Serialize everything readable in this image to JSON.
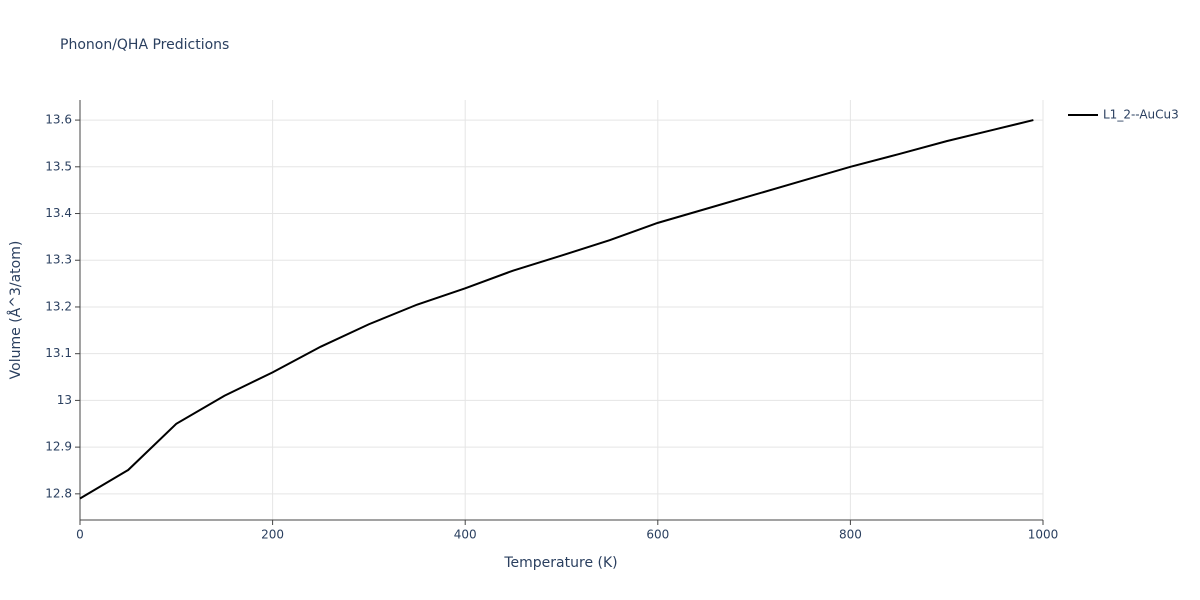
{
  "chart_data": {
    "type": "line",
    "title": "Phonon/QHA Predictions",
    "x_label": "Temperature (K)",
    "y_label": "Volume (Å^3/atom)",
    "x": [
      0,
      50,
      100,
      150,
      200,
      250,
      300,
      350,
      400,
      450,
      500,
      550,
      600,
      650,
      700,
      750,
      800,
      850,
      900,
      950,
      990
    ],
    "series": [
      {
        "name": "L1_2--AuCu3",
        "color": "#000000",
        "values": [
          12.79,
          12.851,
          12.95,
          13.01,
          13.06,
          13.115,
          13.163,
          13.205,
          13.24,
          13.278,
          13.31,
          13.343,
          13.38,
          13.41,
          13.44,
          13.47,
          13.5,
          13.527,
          13.555,
          13.58,
          13.6
        ]
      }
    ],
    "xlim": [
      0,
      1000
    ],
    "xticks": [
      0,
      200,
      400,
      600,
      800,
      1000
    ],
    "ylim": [
      12.744,
      13.643
    ],
    "yticks": [
      12.8,
      12.9,
      13,
      13.1,
      13.2,
      13.3,
      13.4,
      13.5,
      13.6
    ],
    "grid": true,
    "legend": "right"
  }
}
